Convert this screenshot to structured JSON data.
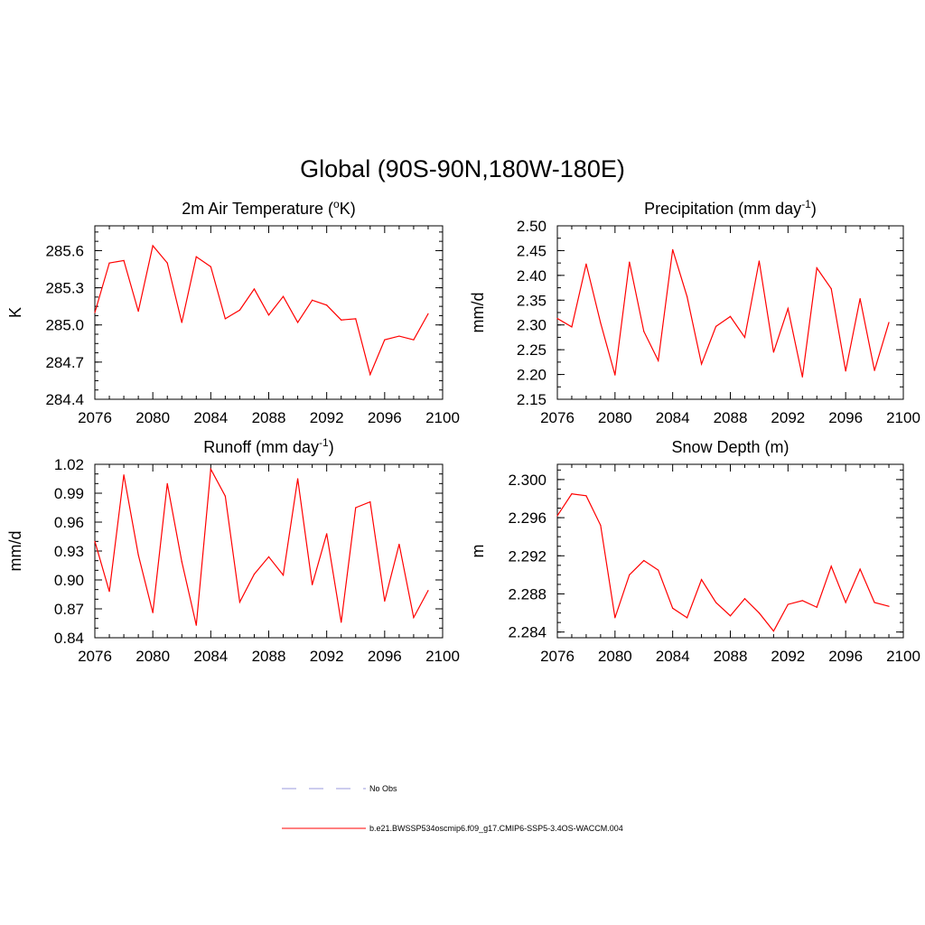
{
  "page_title": "Global (90S-90N,180W-180E)",
  "chart_data": [
    {
      "type": "line",
      "title": "2m Air Temperature (",
      "title_sup": "o",
      "title_after": "K)",
      "ylabel": "K",
      "xlim": [
        2076,
        2100
      ],
      "x_ticks": [
        2076,
        2080,
        2084,
        2088,
        2092,
        2096,
        2100
      ],
      "ylim": [
        284.4,
        285.8
      ],
      "y_ticks": [
        284.4,
        284.7,
        285.0,
        285.3,
        285.6
      ],
      "y_decimals": 1,
      "y_minor_step": 0.075,
      "series": [
        {
          "name": "b.e21.BWSSP534oscmip6.f09_g17.CMIP6-SSP5-3.4OS-WACCM.004",
          "color": "#ff0000",
          "x": [
            2076,
            2077,
            2078,
            2079,
            2080,
            2081,
            2082,
            2083,
            2084,
            2085,
            2086,
            2087,
            2088,
            2089,
            2090,
            2091,
            2092,
            2093,
            2094,
            2095,
            2096,
            2097,
            2098,
            2099
          ],
          "values": [
            285.1,
            285.5,
            285.52,
            285.11,
            285.64,
            285.5,
            285.02,
            285.55,
            285.47,
            285.05,
            285.12,
            285.29,
            285.08,
            285.23,
            285.02,
            285.2,
            285.16,
            285.04,
            285.05,
            284.6,
            284.88,
            284.91,
            284.88,
            285.09
          ]
        }
      ]
    },
    {
      "type": "line",
      "title": "Precipitation (mm day",
      "title_sup": "-1",
      "title_after": ")",
      "ylabel": "mm/d",
      "xlim": [
        2076,
        2100
      ],
      "x_ticks": [
        2076,
        2080,
        2084,
        2088,
        2092,
        2096,
        2100
      ],
      "ylim": [
        2.15,
        2.5
      ],
      "y_ticks": [
        2.15,
        2.2,
        2.25,
        2.3,
        2.35,
        2.4,
        2.45,
        2.5
      ],
      "y_decimals": 2,
      "y_minor_step": 0.025,
      "series": [
        {
          "name": "b.e21.BWSSP534oscmip6.f09_g17.CMIP6-SSP5-3.4OS-WACCM.004",
          "color": "#ff0000",
          "x": [
            2076,
            2077,
            2078,
            2079,
            2080,
            2081,
            2082,
            2083,
            2084,
            2085,
            2086,
            2087,
            2088,
            2089,
            2090,
            2091,
            2092,
            2093,
            2094,
            2095,
            2096,
            2097,
            2098,
            2099
          ],
          "values": [
            2.313,
            2.296,
            2.423,
            2.304,
            2.199,
            2.427,
            2.287,
            2.228,
            2.452,
            2.357,
            2.221,
            2.297,
            2.317,
            2.275,
            2.429,
            2.245,
            2.333,
            2.195,
            2.415,
            2.373,
            2.207,
            2.353,
            2.208,
            2.305
          ]
        }
      ]
    },
    {
      "type": "line",
      "title": "Runoff (mm day",
      "title_sup": "-1",
      "title_after": ")",
      "ylabel": "mm/d",
      "xlim": [
        2076,
        2100
      ],
      "x_ticks": [
        2076,
        2080,
        2084,
        2088,
        2092,
        2096,
        2100
      ],
      "ylim": [
        0.84,
        1.02
      ],
      "y_ticks": [
        0.84,
        0.87,
        0.9,
        0.93,
        0.96,
        0.99,
        1.02
      ],
      "y_decimals": 2,
      "y_minor_step": 0.01,
      "series": [
        {
          "name": "b.e21.BWSSP534oscmip6.f09_g17.CMIP6-SSP5-3.4OS-WACCM.004",
          "color": "#ff0000",
          "x": [
            2076,
            2077,
            2078,
            2079,
            2080,
            2081,
            2082,
            2083,
            2084,
            2085,
            2086,
            2087,
            2088,
            2089,
            2090,
            2091,
            2092,
            2093,
            2094,
            2095,
            2096,
            2097,
            2098,
            2099
          ],
          "values": [
            0.94,
            0.888,
            1.009,
            0.926,
            0.866,
            1.0,
            0.919,
            0.853,
            1.015,
            0.987,
            0.877,
            0.906,
            0.924,
            0.905,
            1.005,
            0.895,
            0.948,
            0.856,
            0.975,
            0.981,
            0.878,
            0.937,
            0.861,
            0.889
          ]
        }
      ]
    },
    {
      "type": "line",
      "title": "Snow Depth (m)",
      "title_sup": "",
      "title_after": "",
      "ylabel": "m",
      "xlim": [
        2076,
        2100
      ],
      "x_ticks": [
        2076,
        2080,
        2084,
        2088,
        2092,
        2096,
        2100
      ],
      "ylim": [
        2.2834,
        2.3016
      ],
      "y_ticks": [
        2.284,
        2.288,
        2.292,
        2.296,
        2.3
      ],
      "y_decimals": 3,
      "y_minor_step": 0.001,
      "series": [
        {
          "name": "b.e21.BWSSP534oscmip6.f09_g17.CMIP6-SSP5-3.4OS-WACCM.004",
          "color": "#ff0000",
          "x": [
            2076,
            2077,
            2078,
            2079,
            2080,
            2081,
            2082,
            2083,
            2084,
            2085,
            2086,
            2087,
            2088,
            2089,
            2090,
            2091,
            2092,
            2093,
            2094,
            2095,
            2096,
            2097,
            2098,
            2099
          ],
          "values": [
            2.2962,
            2.2985,
            2.2983,
            2.2952,
            2.2855,
            2.29,
            2.2915,
            2.2905,
            2.2865,
            2.2855,
            2.2895,
            2.2871,
            2.2857,
            2.2875,
            2.286,
            2.2841,
            2.2869,
            2.2873,
            2.2866,
            2.2909,
            2.2871,
            2.2906,
            2.2871,
            2.2867
          ]
        }
      ]
    }
  ],
  "legend": {
    "items": [
      {
        "label": "No Obs",
        "color": "#9999dd",
        "style": "dashed"
      },
      {
        "label": "b.e21.BWSSP534oscmip6.f09_g17.CMIP6-SSP5-3.4OS-WACCM.004",
        "color": "#ff0000",
        "style": "solid"
      }
    ]
  }
}
